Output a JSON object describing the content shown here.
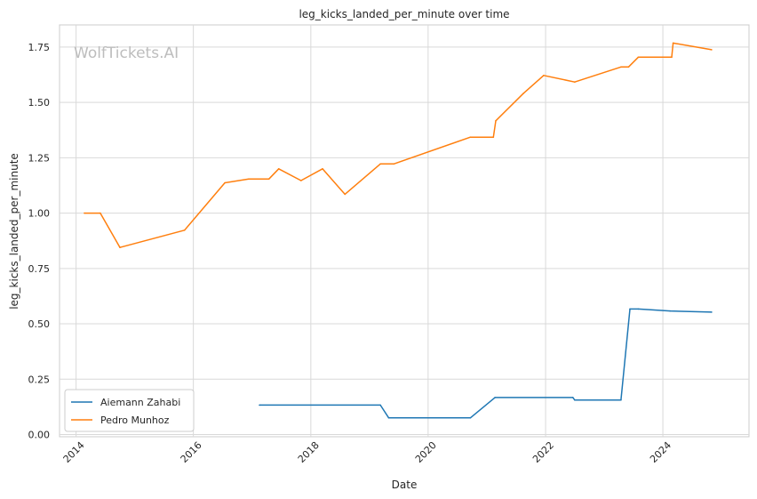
{
  "watermark": "WolfTickets.AI",
  "chart_data": {
    "type": "line",
    "title": "leg_kicks_landed_per_minute over time",
    "xlabel": "Date",
    "ylabel": "leg_kicks_landed_per_minute",
    "x_ticks": [
      "2014",
      "2016",
      "2018",
      "2020",
      "2022",
      "2024"
    ],
    "y_ticks": [
      "0.00",
      "0.25",
      "0.50",
      "0.75",
      "1.00",
      "1.25",
      "1.50",
      "1.75"
    ],
    "xlim": [
      "2013-09-20",
      "2025-06-20"
    ],
    "ylim": [
      -0.01,
      1.85
    ],
    "grid": true,
    "legend_position": "lower-left",
    "series": [
      {
        "name": "Aiemann Zahabi",
        "color": "#1f77b4",
        "points": [
          [
            "2017-02-15",
            0.133
          ],
          [
            "2019-03-10",
            0.133
          ],
          [
            "2019-05-01",
            0.075
          ],
          [
            "2020-09-20",
            0.075
          ],
          [
            "2021-02-20",
            0.167
          ],
          [
            "2022-06-20",
            0.167
          ],
          [
            "2022-07-01",
            0.156
          ],
          [
            "2023-04-15",
            0.156
          ],
          [
            "2023-06-10",
            0.567
          ],
          [
            "2023-08-01",
            0.567
          ],
          [
            "2024-02-15",
            0.558
          ],
          [
            "2024-10-30",
            0.553
          ]
        ]
      },
      {
        "name": "Pedro Munhoz",
        "color": "#ff7f0e",
        "points": [
          [
            "2014-02-22",
            1.0
          ],
          [
            "2014-06-01",
            1.0
          ],
          [
            "2014-10-01",
            0.845
          ],
          [
            "2015-11-07",
            0.923
          ],
          [
            "2016-07-15",
            1.137
          ],
          [
            "2016-12-10",
            1.154
          ],
          [
            "2017-04-15",
            1.154
          ],
          [
            "2017-06-15",
            1.2
          ],
          [
            "2017-11-01",
            1.147
          ],
          [
            "2018-03-15",
            1.2
          ],
          [
            "2018-08-01",
            1.085
          ],
          [
            "2019-03-10",
            1.222
          ],
          [
            "2019-06-01",
            1.222
          ],
          [
            "2020-09-20",
            1.343
          ],
          [
            "2021-02-10",
            1.343
          ],
          [
            "2021-02-25",
            1.417
          ],
          [
            "2021-08-15",
            1.54
          ],
          [
            "2021-12-20",
            1.622
          ],
          [
            "2022-07-01",
            1.592
          ],
          [
            "2023-04-15",
            1.66
          ],
          [
            "2023-06-01",
            1.66
          ],
          [
            "2023-08-01",
            1.704
          ],
          [
            "2024-02-25",
            1.704
          ],
          [
            "2024-03-05",
            1.768
          ],
          [
            "2024-10-30",
            1.738
          ]
        ]
      }
    ]
  }
}
